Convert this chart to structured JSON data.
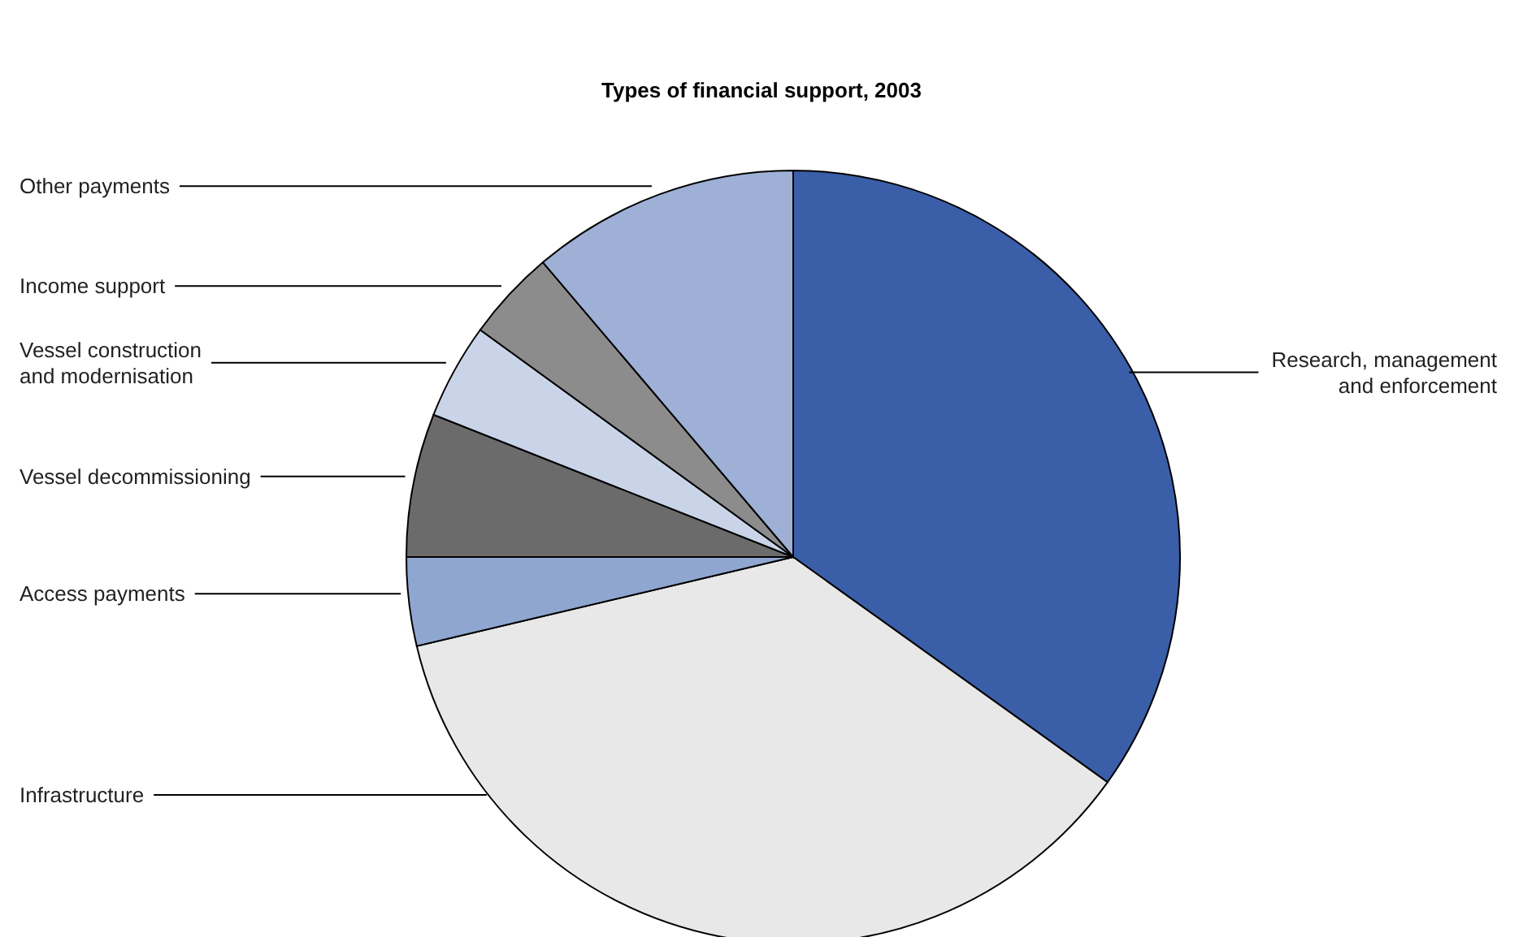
{
  "chart_data": {
    "type": "pie",
    "title": "Types of financial support, 2003",
    "categories": [
      "Research, management\nand enforcement",
      "Infrastructure",
      "Access payments",
      "Vessel decommissioning",
      "Vessel construction\nand modernisation",
      "Income support",
      "Other payments"
    ],
    "values": [
      34.9,
      36.4,
      3.7,
      6.0,
      4.0,
      3.8,
      11.2
    ],
    "colors": [
      "#3b5ea8",
      "#e8e8e8",
      "#8fa6d0",
      "#6b6b6b",
      "#c9d4e8",
      "#8c8c8c",
      "#9eb0d6"
    ]
  }
}
